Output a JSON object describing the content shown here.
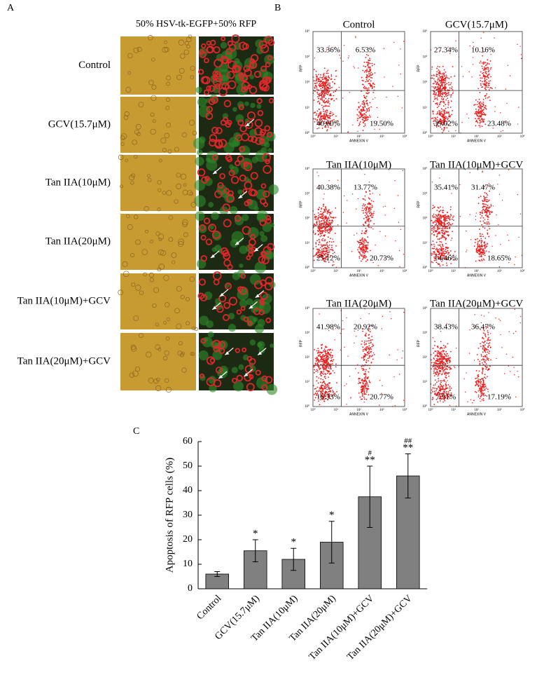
{
  "panel_a": {
    "label": "A",
    "header": "50% HSV-tk-EGFP+50% RFP",
    "rows": [
      "Control",
      "GCV(15.7μM)",
      "Tan IIA(10μM)",
      "Tan IIA(20μM)",
      "Tan IIA(10μM)+GCV",
      "Tan IIA(20μM)+GCV"
    ]
  },
  "panel_b": {
    "label": "B",
    "y_axis_label": "RFP",
    "x_axis_label": "ANNEXIN V",
    "axis_ticks": [
      "10⁰",
      "10¹",
      "10²",
      "10³",
      "10⁴"
    ],
    "plots": [
      {
        "title": "Control",
        "quadrants": [
          "33.36%",
          "6.53%",
          "40.60%",
          "19.50%"
        ]
      },
      {
        "title": "GCV(15.7μM)",
        "quadrants": [
          "27.34%",
          "10.16%",
          "39.02%",
          "23.48%"
        ]
      },
      {
        "title": "Tan IIA(10μM)",
        "quadrants": [
          "40.38%",
          "13.77%",
          "25.12%",
          "20.73%"
        ]
      },
      {
        "title": "Tan IIA(10μM)+GCV",
        "quadrants": [
          "35.41%",
          "31.47%",
          "14.46%",
          "18.65%"
        ]
      },
      {
        "title": "Tan IIA(20μM)",
        "quadrants": [
          "41.98%",
          "20.92%",
          "16.33%",
          "20.77%"
        ]
      },
      {
        "title": "Tan IIA(20μM)+GCV",
        "quadrants": [
          "38.43%",
          "36.47%",
          "7.91%",
          "17.19%"
        ]
      }
    ]
  },
  "panel_c_label": "C",
  "chart_data": {
    "type": "bar",
    "y_axis_label": "Apoptosis of RFP cells (%)",
    "categories": [
      "Control",
      "GCV(15.7μM)",
      "Tan IIA(10μM)",
      "Tan IIA(20μM)",
      "Tan IIA(10μM)+GCV",
      "Tan IIA(20μM)+GCV"
    ],
    "values": [
      6,
      15.5,
      12,
      19,
      37.5,
      46
    ],
    "errors": [
      1,
      4.5,
      4.5,
      8.5,
      12.5,
      9
    ],
    "significance": [
      null,
      "*",
      "*",
      "*",
      "**",
      "**"
    ],
    "significance_vs_gcv": [
      null,
      null,
      null,
      null,
      "#",
      "##"
    ],
    "color": "#808080",
    "ylim": [
      0,
      60
    ],
    "yticks": [
      0,
      10,
      20,
      30,
      40,
      50,
      60
    ]
  }
}
